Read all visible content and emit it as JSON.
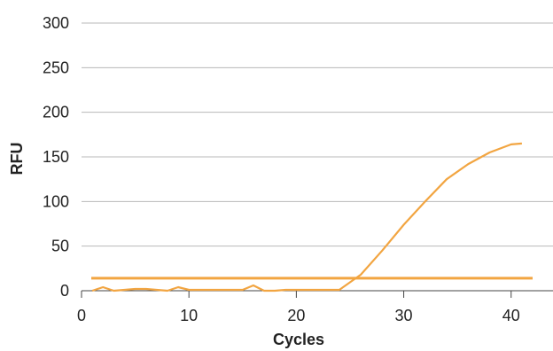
{
  "chart_data": {
    "type": "line",
    "title": "",
    "xlabel": "Cycles",
    "ylabel": "RFU",
    "xlim": [
      0,
      42
    ],
    "ylim": [
      0,
      300
    ],
    "x_ticks": [
      "0",
      "10",
      "20",
      "30",
      "40"
    ],
    "y_ticks": [
      "0",
      "50",
      "100",
      "150",
      "200",
      "250",
      "300"
    ],
    "x_tick_values": [
      0,
      10,
      20,
      30,
      40
    ],
    "y_tick_values": [
      0,
      50,
      100,
      150,
      200,
      250,
      300
    ],
    "grid": "horizontal",
    "legend": "none",
    "threshold": 14,
    "series": [
      {
        "color": "#F2A541",
        "x": [
          1,
          2,
          3,
          4,
          5,
          6,
          7,
          8,
          9,
          10,
          11,
          12,
          13,
          14,
          15,
          16,
          17,
          18,
          19,
          20,
          21,
          22,
          23,
          24,
          26,
          28,
          30,
          32,
          34,
          36,
          38,
          40,
          41
        ],
        "y": [
          0,
          4,
          0,
          1,
          2,
          2,
          1,
          0,
          4,
          1,
          1,
          1,
          1,
          1,
          1,
          6,
          0,
          0,
          1,
          1,
          1,
          1,
          1,
          1,
          18,
          45,
          74,
          100,
          125,
          142,
          155,
          164,
          165
        ]
      }
    ]
  }
}
